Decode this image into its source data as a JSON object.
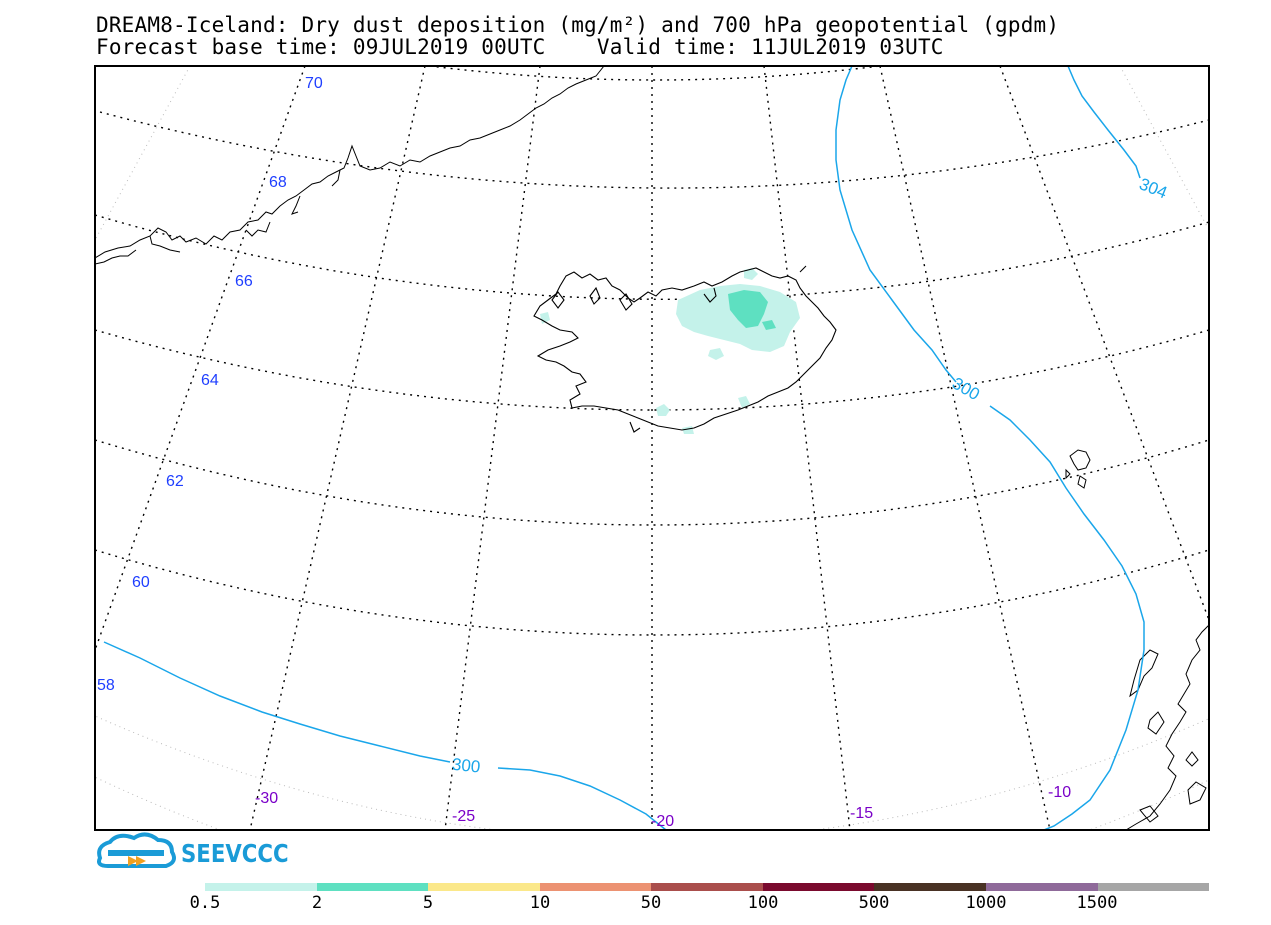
{
  "title": {
    "line1": "DREAM8-Iceland: Dry dust deposition (mg/m²) and 700 hPa geopotential (gpdm)",
    "line2": "Forecast base time: 09JUL2019 00UTC    Valid time: 11JUL2019 03UTC"
  },
  "latitude_labels": [
    "70",
    "68",
    "66",
    "64",
    "62",
    "60",
    "58"
  ],
  "longitude_labels": [
    "-30",
    "-25",
    "-20",
    "-15",
    "-10"
  ],
  "contours": [
    {
      "value": "300",
      "color": "#1aa6ea"
    },
    {
      "value": "300",
      "color": "#1aa6ea"
    },
    {
      "value": "304",
      "color": "#1aa6ea"
    }
  ],
  "logo": {
    "text": "SEEVCCC",
    "icon": "cloud-logo-icon",
    "color": "#1a9bd7"
  },
  "color_scale": {
    "colors": [
      "#c4f2ea",
      "#5ee0c1",
      "#fbe88a",
      "#ec9272",
      "#aa4e4c",
      "#7a0a2e",
      "#493224",
      "#8f6a9a",
      "#a6a6a6"
    ],
    "labels": [
      "0.5",
      "2",
      "5",
      "10",
      "50",
      "100",
      "500",
      "1000",
      "1500"
    ]
  },
  "colors": {
    "lat_label": "#1f3fff",
    "lon_label": "#7a00c8",
    "contour": "#1aa6ea",
    "dust_light": "#c4f2ea",
    "dust_mid": "#5ee0c1"
  }
}
